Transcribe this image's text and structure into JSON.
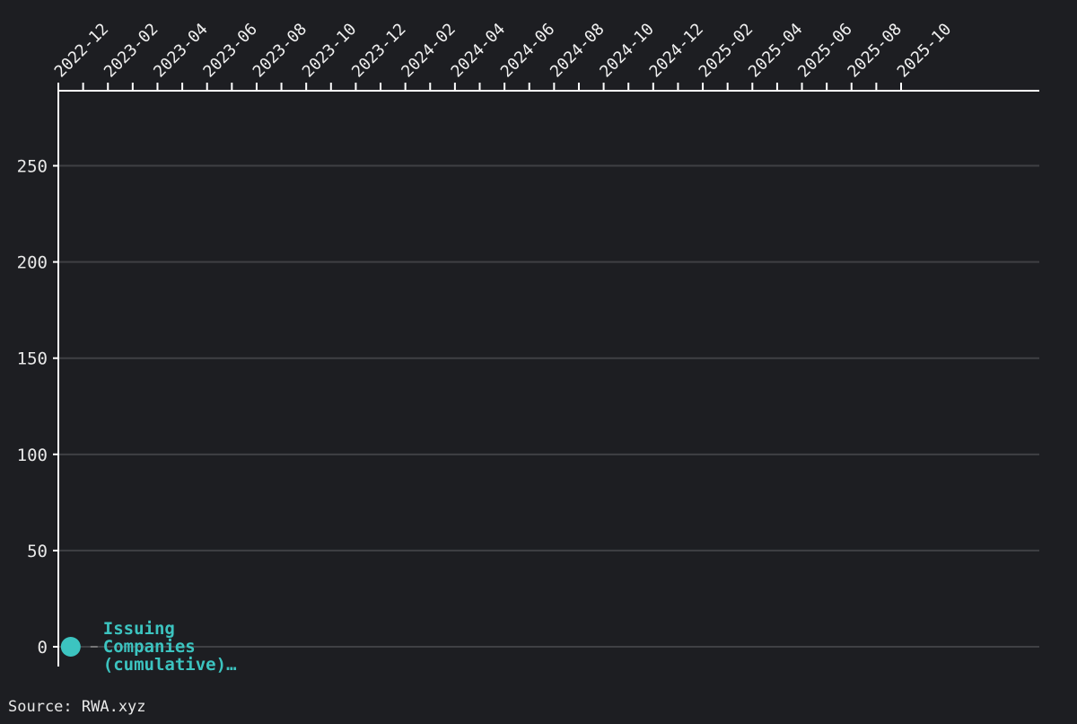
{
  "chart_data": {
    "type": "line",
    "title": "",
    "xlabel": "",
    "ylabel": "",
    "x_tick_labels": [
      "2022-12",
      "2023-02",
      "2023-04",
      "2023-06",
      "2023-08",
      "2023-10",
      "2023-12",
      "2024-02",
      "2024-04",
      "2024-06",
      "2024-08",
      "2024-10",
      "2024-12",
      "2025-02",
      "2025-04",
      "2025-06",
      "2025-08",
      "2025-10"
    ],
    "x_range": [
      "2022-12",
      "2026-01"
    ],
    "y_ticks": [
      0,
      50,
      100,
      150,
      200,
      250
    ],
    "ylim": [
      0,
      289
    ],
    "grid": "horizontal",
    "series": [
      {
        "name": "Issuing Companies (cumulative)…",
        "color": "#3cc4c0",
        "points": [
          {
            "x": "2022-12-16",
            "y": 0
          }
        ]
      }
    ]
  },
  "source": "Source: RWA.xyz",
  "colors": {
    "background": "#1d1e22",
    "axis": "#ffffff",
    "grid": "#3f4044",
    "series": "#3cc4c0"
  }
}
